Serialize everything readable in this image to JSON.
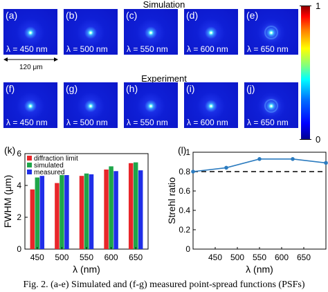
{
  "top_section": {
    "title": "Simulation",
    "panels": [
      {
        "tag": "(a)",
        "lambda": "λ = 450 nm"
      },
      {
        "tag": "(b)",
        "lambda": "λ = 500 nm"
      },
      {
        "tag": "(c)",
        "lambda": "λ = 550 nm"
      },
      {
        "tag": "(d)",
        "lambda": "λ = 600 nm"
      },
      {
        "tag": "(e)",
        "lambda": "λ = 650 nm"
      }
    ]
  },
  "bottom_section": {
    "title": "Experiment",
    "panels": [
      {
        "tag": "(f)",
        "lambda": "λ = 450 nm"
      },
      {
        "tag": "(g)",
        "lambda": "λ = 500 nm"
      },
      {
        "tag": "(h)",
        "lambda": "λ = 550 nm"
      },
      {
        "tag": "(i)",
        "lambda": "λ = 600 nm"
      },
      {
        "tag": "(j)",
        "lambda": "λ = 650 nm"
      }
    ]
  },
  "scale_bar": {
    "label": "120 μm"
  },
  "colorbar": {
    "max_label": "1",
    "min_label": "0",
    "colormap": "jet"
  },
  "chart_data": [
    {
      "type": "bar",
      "panel_label": "(k)",
      "categories": [
        "450",
        "500",
        "550",
        "600",
        "650"
      ],
      "series": [
        {
          "name": "diffraction limit",
          "color": "#e8262a",
          "values": [
            3.75,
            4.15,
            4.6,
            5.0,
            5.4
          ]
        },
        {
          "name": "simulated",
          "color": "#1ea64a",
          "values": [
            4.5,
            4.65,
            4.75,
            5.2,
            5.45
          ]
        },
        {
          "name": "measured",
          "color": "#1f2ee8",
          "values": [
            4.6,
            4.65,
            4.7,
            4.9,
            4.95
          ]
        }
      ],
      "xlabel": "λ (nm)",
      "ylabel": "FWHM (μm)",
      "ylim": [
        0,
        6
      ],
      "yticks": [
        "0",
        "2",
        "4",
        "6"
      ],
      "legend_position": "top-left"
    },
    {
      "type": "line",
      "panel_label": "(l)",
      "x": [
        400,
        475,
        550,
        625,
        700
      ],
      "y": [
        0.8,
        0.84,
        0.93,
        0.93,
        0.89
      ],
      "reference_line_y": 0.8,
      "series_color": "#2b7bbf",
      "xlabel": "λ (nm)",
      "ylabel": "Strehl ratio",
      "xticks": [
        "450",
        "500",
        "550",
        "600",
        "650"
      ],
      "xlim": [
        400,
        700
      ],
      "ylim": [
        0,
        1
      ],
      "yticks": [
        "0",
        "0.2",
        "0.4",
        "0.6",
        "0.8",
        "1"
      ]
    }
  ],
  "caption": "Fig. 2. (a-e) Simulated and (f-g) measured point-spread functions (PSFs)"
}
